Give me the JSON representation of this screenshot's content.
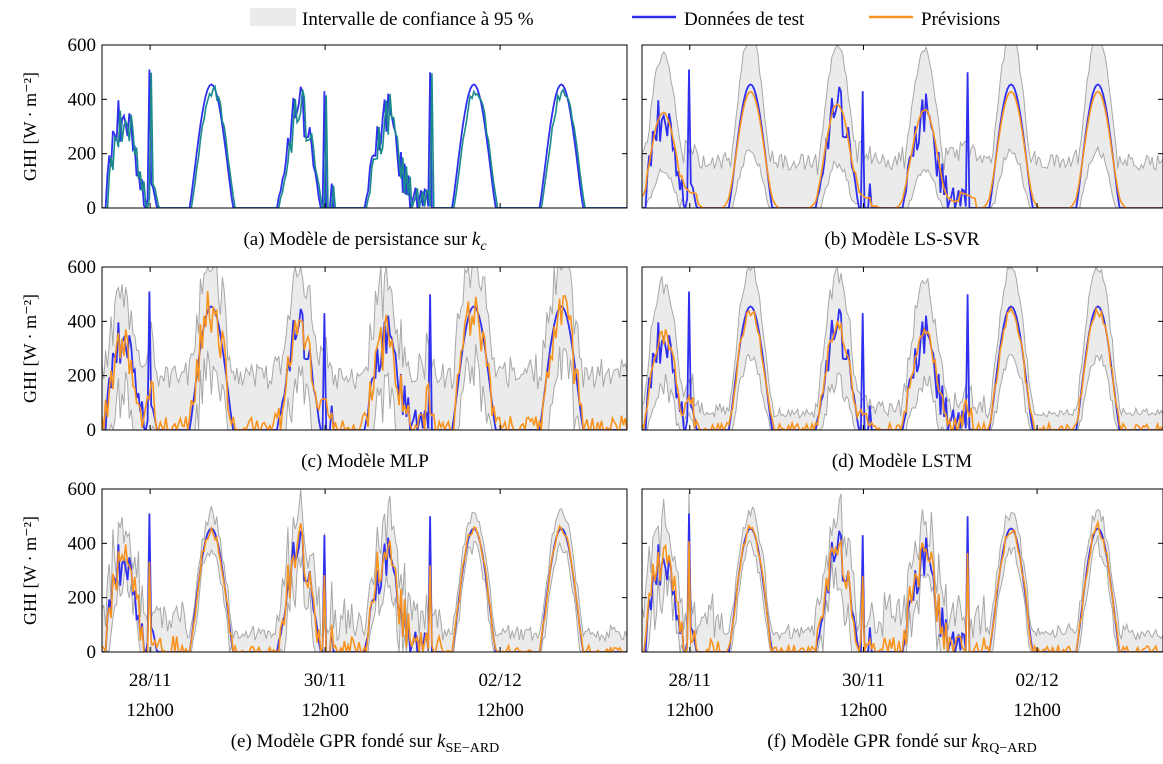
{
  "legend": {
    "ci_label": "Intervalle de confiance à 95 %",
    "test_label": "Données de test",
    "forecast_label": "Prévisions"
  },
  "colors": {
    "test": "#2f2fef",
    "forecast": "#f7931e",
    "persistence": "#1a8a8a",
    "ci_fill": "#ebebeb",
    "ci_line": "#a8a8a8"
  },
  "axes": {
    "ylabel": "GHI [W · m⁻²]",
    "y_ticks": [
      "0",
      "200",
      "400",
      "600"
    ],
    "x_ticks": [
      {
        "date": "28/11",
        "time": "12h00"
      },
      {
        "date": "30/11",
        "time": "12h00"
      },
      {
        "date": "02/12",
        "time": "12h00"
      }
    ]
  },
  "chart_data": [
    {
      "type": "line",
      "caption": "(a) Modèle de persistance sur ",
      "caption_sym": "k",
      "caption_sub": "c",
      "variant": "persistence",
      "show_ci": false,
      "ylim": [
        0,
        600
      ],
      "xlim": [
        0,
        6
      ],
      "x_unit": "days"
    },
    {
      "type": "line",
      "caption": "(b) Modèle LS-SVR",
      "caption_sym": "",
      "caption_sub": "",
      "variant": "lssvr",
      "show_ci": true,
      "ylim": [
        0,
        600
      ],
      "xlim": [
        0,
        6
      ],
      "x_unit": "days"
    },
    {
      "type": "line",
      "caption": "(c) Modèle MLP",
      "caption_sym": "",
      "caption_sub": "",
      "variant": "mlp",
      "show_ci": true,
      "ylim": [
        0,
        600
      ],
      "xlim": [
        0,
        6
      ],
      "x_unit": "days"
    },
    {
      "type": "line",
      "caption": "(d) Modèle LSTM",
      "caption_sym": "",
      "caption_sub": "",
      "variant": "lstm",
      "show_ci": true,
      "ylim": [
        0,
        600
      ],
      "xlim": [
        0,
        6
      ],
      "x_unit": "days"
    },
    {
      "type": "line",
      "caption": "(e) Modèle GPR fondé sur ",
      "caption_sym": "k",
      "caption_sub": "SE−ARD",
      "variant": "gpr_se",
      "show_ci": true,
      "ylim": [
        0,
        600
      ],
      "xlim": [
        0,
        6
      ],
      "x_unit": "days"
    },
    {
      "type": "line",
      "caption": "(f) Modèle GPR fondé sur ",
      "caption_sym": "k",
      "caption_sub": "RQ−ARD",
      "variant": "gpr_rq",
      "show_ci": true,
      "ylim": [
        0,
        600
      ],
      "xlim": [
        0,
        6
      ],
      "x_unit": "days"
    }
  ]
}
